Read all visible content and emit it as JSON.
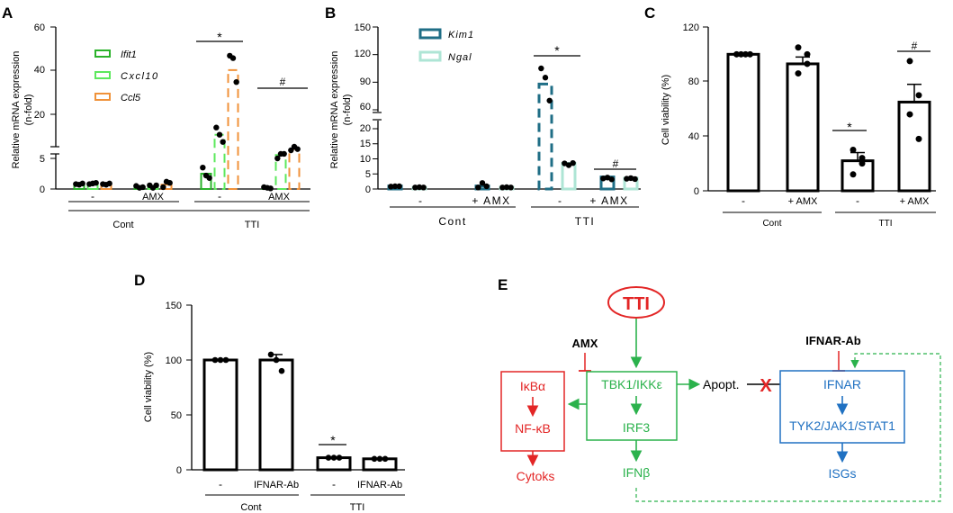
{
  "colors": {
    "green": "#2ab22a",
    "lime": "#5de85d",
    "orange": "#f0923a",
    "teal": "#1f6e86",
    "mint": "#aee5d5",
    "black": "#000000",
    "red": "#e32626",
    "pathway_green": "#2bb24c",
    "blue": "#2071c2"
  },
  "chart_data": [
    {
      "panel": "A",
      "type": "bar",
      "ylabel": "Relative mRNA expression",
      "ylabel2": "(n-fold)",
      "ylim": [
        0,
        60
      ],
      "axis_break": [
        5,
        10
      ],
      "yticks": [
        "0",
        "5",
        "20",
        "40",
        "60"
      ],
      "series": [
        {
          "name": "Ifit1",
          "values": [
            0.8,
            0.3,
            2.5,
            0.2
          ],
          "points": [
            [
              0.8,
              0.7,
              0.9
            ],
            [
              0.5,
              0.2,
              0.3
            ],
            [
              3.5,
              2.2,
              1.8
            ],
            [
              0.3,
              0.2,
              0.1
            ]
          ]
        },
        {
          "name": "Cxcl10",
          "values": [
            0.9,
            0.5,
            15,
            6.5
          ],
          "points": [
            [
              0.8,
              0.9,
              1.0
            ],
            [
              0.6,
              0.2,
              0.6
            ],
            [
              18,
              15,
              12
            ],
            [
              5,
              7,
              7
            ]
          ]
        },
        {
          "name": "Ccl5",
          "values": [
            0.8,
            0.7,
            42,
            9
          ],
          "points": [
            [
              0.8,
              0.7,
              0.9
            ],
            [
              0.3,
              1.2,
              1.0
            ],
            [
              48,
              47,
              37
            ],
            [
              8.5,
              10,
              9
            ]
          ]
        }
      ],
      "treatments": [
        "-",
        "AMX",
        "-",
        "AMX"
      ],
      "groups": [
        "Cont",
        "TTI"
      ],
      "annotations": [
        "*",
        "#"
      ]
    },
    {
      "panel": "B",
      "type": "bar",
      "ylabel": "Relative mRNA expression",
      "ylabel2": "(n-fold)",
      "ylim": [
        0,
        150
      ],
      "axis_break": [
        20,
        60
      ],
      "yticks": [
        "0",
        "5",
        "10",
        "15",
        "20",
        "60",
        "90",
        "120",
        "150"
      ],
      "series": [
        {
          "name": "Kim1",
          "values": [
            1,
            1,
            88,
            4
          ],
          "points": [
            [
              0.8,
              0.9,
              0.9
            ],
            [
              0.5,
              2.0,
              0.9
            ],
            [
              105,
              95,
              70
            ],
            [
              3.5,
              3.8,
              3.2
            ]
          ]
        },
        {
          "name": "Ngal",
          "values": [
            0.5,
            0.6,
            8.5,
            3.6
          ],
          "points": [
            [
              0.5,
              0.6,
              0.5
            ],
            [
              0.5,
              0.6,
              0.5
            ],
            [
              8.5,
              7.9,
              8.6
            ],
            [
              3.4,
              3.6,
              3.3
            ]
          ]
        }
      ],
      "treatments": [
        "-",
        "+ AMX",
        "-",
        "+ AMX"
      ],
      "groups": [
        "Cont",
        "TTI"
      ],
      "annotations": [
        "*",
        "#"
      ]
    },
    {
      "panel": "C",
      "type": "bar",
      "ylabel": "Cell viability (%)",
      "ylim": [
        0,
        120
      ],
      "yticks": [
        "0",
        "40",
        "80",
        "120"
      ],
      "categories": [
        "-",
        "+ AMX",
        "-",
        "+ AMX"
      ],
      "values": [
        100,
        93,
        22,
        65
      ],
      "points": [
        [
          100,
          100,
          100,
          100
        ],
        [
          105,
          100,
          86,
          93
        ],
        [
          30,
          24,
          12,
          20
        ],
        [
          95,
          70,
          56,
          38
        ]
      ],
      "groups": [
        "Cont",
        "TTI"
      ],
      "annotations": [
        "*",
        "#"
      ]
    },
    {
      "panel": "D",
      "type": "bar",
      "ylabel": "Cell viability (%)",
      "ylim": [
        0,
        150
      ],
      "yticks": [
        "0",
        "50",
        "100",
        "150"
      ],
      "categories": [
        "-",
        "IFNAR-Ab",
        "-",
        "IFNAR-Ab"
      ],
      "values": [
        100,
        100,
        11,
        10
      ],
      "points": [
        [
          100,
          100,
          100
        ],
        [
          105,
          100,
          90
        ],
        [
          11,
          11,
          11
        ],
        [
          10,
          10,
          10
        ]
      ],
      "groups": [
        "Cont",
        "TTI"
      ],
      "annotations": [
        "*"
      ]
    }
  ],
  "panel_labels": [
    "A",
    "B",
    "C",
    "D",
    "E"
  ],
  "diagram": {
    "tti": "TTI",
    "amx": "AMX",
    "ifnar_ab": "IFNAR-Ab",
    "ikba": "IκBα",
    "nfkb": "NF-κB",
    "cytoks": "Cytoks",
    "tbk1": "TBK1/IKKε",
    "irf3": "IRF3",
    "ifnb": "IFNβ",
    "apopt": "Apopt.",
    "ifnar": "IFNAR",
    "tyk2": "TYK2/JAK1/STAT1",
    "isgs": "ISGs",
    "x_mark": "X"
  }
}
